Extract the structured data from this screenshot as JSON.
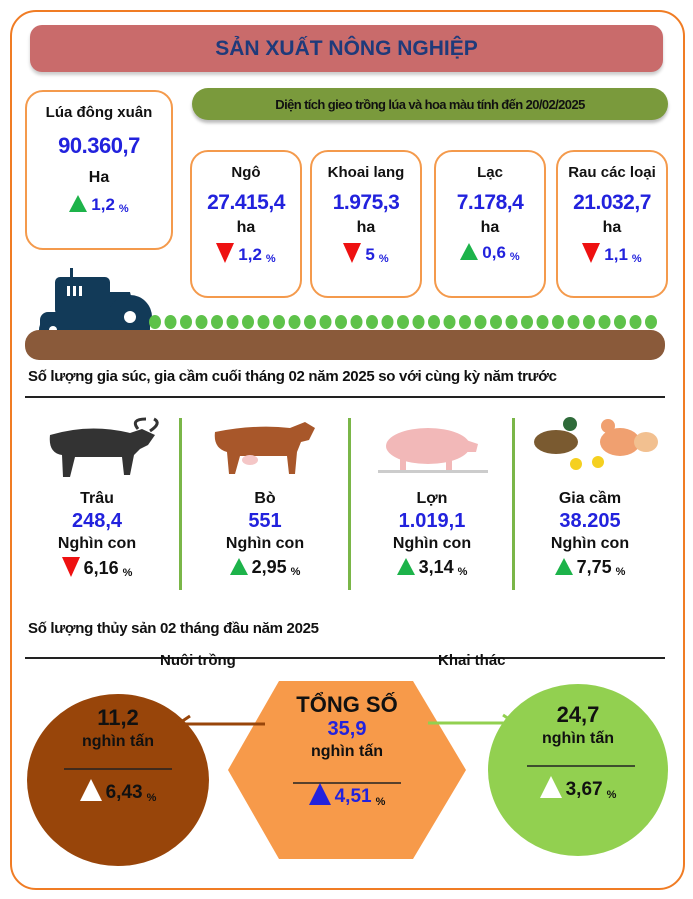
{
  "title": "SẢN XUẤT NÔNG NGHIỆP",
  "rice": {
    "name": "Lúa đông xuân",
    "value": "90.360,7",
    "unit": "Ha",
    "change": "1,2",
    "pct": "%",
    "direction": "up"
  },
  "area_banner": "Diện tích gieo trồng lúa và hoa màu tính đến 20/02/2025",
  "crops": [
    {
      "name": "Ngô",
      "value": "27.415,4",
      "unit": "ha",
      "change": "1,2",
      "pct": "%",
      "direction": "down"
    },
    {
      "name": "Khoai lang",
      "value": "1.975,3",
      "unit": "ha",
      "change": "5",
      "pct": "%",
      "direction": "down"
    },
    {
      "name": "Lạc",
      "value": "7.178,4",
      "unit": "ha",
      "change": "0,6",
      "pct": "%",
      "direction": "up"
    },
    {
      "name": "Rau các loại",
      "value": "21.032,7",
      "unit": "ha",
      "change": "1,1",
      "pct": "%",
      "direction": "down"
    }
  ],
  "livestock_heading": "Số lượng gia súc, gia cầm cuối tháng 02 năm 2025 so với cùng kỳ năm trước",
  "livestock": [
    {
      "name": "Trâu",
      "value": "248,4",
      "unit": "Nghìn con",
      "change": "6,16",
      "pct": "%",
      "direction": "down",
      "icon": "buffalo-icon"
    },
    {
      "name": "Bò",
      "value": "551",
      "unit": "Nghìn con",
      "change": "2,95",
      "pct": "%",
      "direction": "up",
      "icon": "cow-icon"
    },
    {
      "name": "Lợn",
      "value": "1.019,1",
      "unit": "Nghìn con",
      "change": "3,14",
      "pct": "%",
      "direction": "up",
      "icon": "pig-icon"
    },
    {
      "name": "Gia cầm",
      "value": "38.205",
      "unit": "Nghìn con",
      "change": "7,75",
      "pct": "%",
      "direction": "up",
      "icon": "poultry-icon"
    }
  ],
  "aqua_heading": "Số lượng thủy sản 02 tháng đầu năm 2025",
  "aqua": {
    "farming": {
      "label": "Nuôi trồng",
      "value": "11,2",
      "unit": "nghìn tấn",
      "change": "6,43",
      "pct": "%"
    },
    "total": {
      "label": "TỔNG SỐ",
      "value": "35,9",
      "unit": "nghìn tấn",
      "change": "4,51",
      "pct": "%"
    },
    "catch": {
      "label": "Khai thác",
      "value": "24,7",
      "unit": "nghìn tấn",
      "change": "3,67",
      "pct": "%"
    }
  },
  "colors": {
    "frame": "#f07c24",
    "title_bg": "#c96b6b",
    "banner": "#7a9a3c",
    "farming": "#98450a",
    "total": "#f79a4a",
    "catch": "#92d050",
    "up": "#1db34a",
    "down": "#ee1111"
  }
}
